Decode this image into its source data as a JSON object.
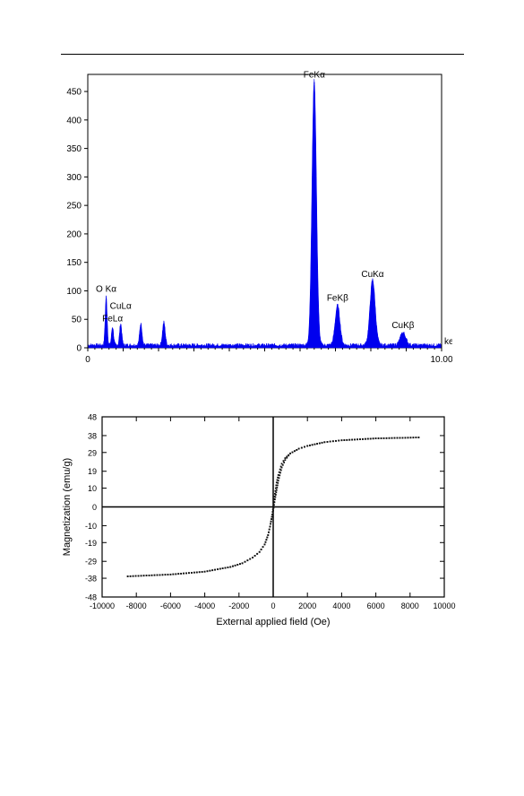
{
  "chart_data": [
    {
      "type": "area",
      "xlim": [
        0,
        10
      ],
      "ylim": [
        0,
        480
      ],
      "y_ticks": [
        0,
        50,
        100,
        150,
        200,
        250,
        300,
        350,
        400,
        450
      ],
      "x_tick_labels": [
        "0",
        "10.00"
      ],
      "x_unit_label": "keV",
      "color": "#0000ee",
      "series": [
        {
          "peaks": [
            {
              "x": 0.52,
              "y": 85
            },
            {
              "x": 0.7,
              "y": 32
            },
            {
              "x": 0.93,
              "y": 38
            },
            {
              "x": 1.5,
              "y": 38
            },
            {
              "x": 2.15,
              "y": 40
            },
            {
              "x": 6.4,
              "y": 465
            },
            {
              "x": 7.06,
              "y": 70
            },
            {
              "x": 8.05,
              "y": 115
            },
            {
              "x": 8.91,
              "y": 22
            }
          ]
        }
      ],
      "annotations": [
        {
          "text": "FeKα",
          "x": 6.4,
          "y": 468
        },
        {
          "text": "O Kα",
          "x": 0.52,
          "y": 92
        },
        {
          "text": "CuLα",
          "x": 0.93,
          "y": 62
        },
        {
          "text": "FeLα",
          "x": 0.7,
          "y": 40
        },
        {
          "text": "FeKβ",
          "x": 7.06,
          "y": 76
        },
        {
          "text": "CuKα",
          "x": 8.05,
          "y": 118
        },
        {
          "text": "CuKβ",
          "x": 8.91,
          "y": 28
        }
      ]
    },
    {
      "type": "scatter",
      "xlabel": "External applied field (Oe)",
      "ylabel": "Magnetization (emu/g)",
      "xlim": [
        -10000,
        10000
      ],
      "ylim": [
        -48,
        48
      ],
      "x_ticks": [
        -10000,
        -8000,
        -6000,
        -4000,
        -2000,
        0,
        2000,
        4000,
        6000,
        8000,
        10000
      ],
      "y_ticks": [
        48,
        38,
        29,
        19,
        10,
        0,
        -10,
        -19,
        -29,
        -38,
        -48
      ],
      "zero_lines": true,
      "series": [
        {
          "branch": "descending",
          "x": [
            8500,
            6000,
            4000,
            3000,
            2000,
            1500,
            1000,
            700,
            500,
            300,
            200,
            100,
            0,
            -50,
            -150,
            -300,
            -500,
            -800,
            -1200,
            -1800,
            -2500,
            -4000,
            -6000,
            -8500
          ],
          "y": [
            37,
            36.5,
            35.5,
            34.5,
            32.5,
            31,
            28.5,
            26,
            23,
            17,
            13,
            7,
            0,
            -4,
            -9,
            -15,
            -20,
            -24,
            -27,
            -30,
            -32,
            -34.5,
            -36,
            -37
          ]
        },
        {
          "branch": "ascending",
          "x": [
            -8500,
            -6000,
            -4000,
            -2500,
            -1800,
            -1200,
            -800,
            -500,
            -300,
            -150,
            -50,
            0,
            100,
            200,
            300,
            500,
            700,
            1000,
            1500,
            2000,
            3000,
            4000,
            6000,
            8500
          ],
          "y": [
            -37,
            -36,
            -34.5,
            -32,
            -30,
            -27,
            -24,
            -20,
            -15,
            -9,
            -4,
            -2,
            4,
            9,
            14,
            21,
            25,
            28.5,
            31,
            32.5,
            34.5,
            35.5,
            36.5,
            37
          ]
        }
      ]
    }
  ]
}
